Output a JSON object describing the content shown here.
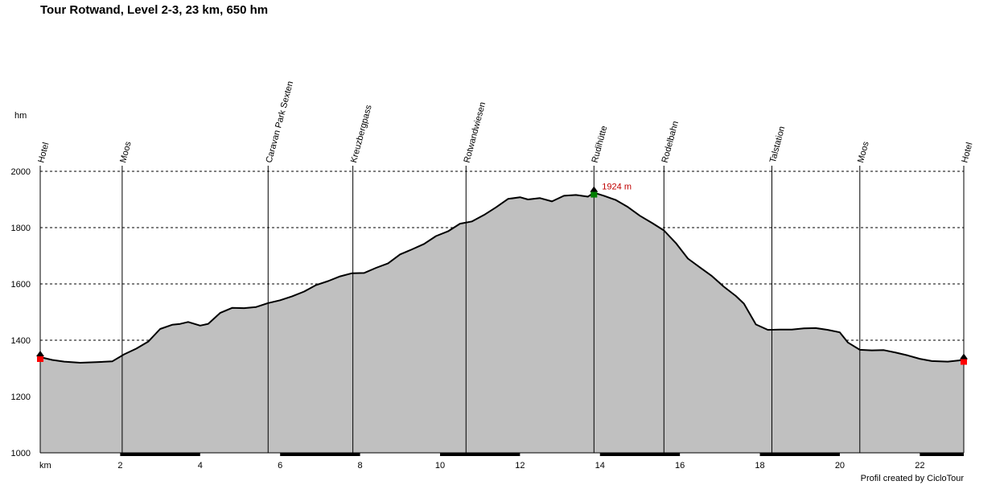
{
  "chart_data": {
    "type": "area",
    "title": "Tour Rotwand, Level 2-3, 23 km, 650 hm",
    "xlabel": "km",
    "ylabel": "hm",
    "xlim": [
      0,
      23.1
    ],
    "ylim": [
      1000,
      2000
    ],
    "x_ticks": [
      2,
      4,
      6,
      8,
      10,
      12,
      14,
      16,
      18,
      20,
      22
    ],
    "y_ticks": [
      1000,
      1200,
      1400,
      1600,
      1800,
      2000
    ],
    "grid": "horizontal dashed",
    "colors": {
      "fill": "#c0c0c0",
      "line": "#000000",
      "summit_marker": "#008000",
      "endpoint_marker": "#ff0000",
      "annotation": "#c00000"
    },
    "profile": [
      [
        0,
        1340
      ],
      [
        0.3,
        1330
      ],
      [
        0.6,
        1324
      ],
      [
        1.0,
        1320
      ],
      [
        1.4,
        1322
      ],
      [
        1.8,
        1325
      ],
      [
        2.1,
        1350
      ],
      [
        2.4,
        1370
      ],
      [
        2.7,
        1395
      ],
      [
        3.0,
        1440
      ],
      [
        3.3,
        1455
      ],
      [
        3.5,
        1458
      ],
      [
        3.7,
        1465
      ],
      [
        4.0,
        1452
      ],
      [
        4.2,
        1458
      ],
      [
        4.5,
        1497
      ],
      [
        4.8,
        1515
      ],
      [
        5.1,
        1514
      ],
      [
        5.4,
        1518
      ],
      [
        5.7,
        1532
      ],
      [
        6.0,
        1542
      ],
      [
        6.3,
        1556
      ],
      [
        6.6,
        1573
      ],
      [
        6.9,
        1596
      ],
      [
        7.2,
        1610
      ],
      [
        7.5,
        1627
      ],
      [
        7.8,
        1638
      ],
      [
        8.1,
        1639
      ],
      [
        8.4,
        1657
      ],
      [
        8.7,
        1673
      ],
      [
        9.0,
        1705
      ],
      [
        9.3,
        1723
      ],
      [
        9.6,
        1742
      ],
      [
        9.9,
        1770
      ],
      [
        10.2,
        1787
      ],
      [
        10.5,
        1814
      ],
      [
        10.8,
        1822
      ],
      [
        11.1,
        1845
      ],
      [
        11.4,
        1872
      ],
      [
        11.7,
        1902
      ],
      [
        12.0,
        1908
      ],
      [
        12.2,
        1900
      ],
      [
        12.5,
        1905
      ],
      [
        12.8,
        1893
      ],
      [
        13.1,
        1913
      ],
      [
        13.4,
        1916
      ],
      [
        13.7,
        1910
      ],
      [
        13.85,
        1924
      ],
      [
        14.1,
        1913
      ],
      [
        14.4,
        1898
      ],
      [
        14.7,
        1873
      ],
      [
        15.0,
        1842
      ],
      [
        15.3,
        1817
      ],
      [
        15.6,
        1790
      ],
      [
        15.9,
        1745
      ],
      [
        16.2,
        1690
      ],
      [
        16.5,
        1659
      ],
      [
        16.8,
        1628
      ],
      [
        17.1,
        1590
      ],
      [
        17.4,
        1557
      ],
      [
        17.6,
        1530
      ],
      [
        17.9,
        1456
      ],
      [
        18.2,
        1437
      ],
      [
        18.5,
        1438
      ],
      [
        18.8,
        1438
      ],
      [
        19.1,
        1442
      ],
      [
        19.4,
        1443
      ],
      [
        19.7,
        1437
      ],
      [
        20.0,
        1428
      ],
      [
        20.2,
        1392
      ],
      [
        20.5,
        1366
      ],
      [
        20.8,
        1364
      ],
      [
        21.1,
        1365
      ],
      [
        21.4,
        1356
      ],
      [
        21.7,
        1346
      ],
      [
        22.0,
        1334
      ],
      [
        22.3,
        1326
      ],
      [
        22.7,
        1324
      ],
      [
        23.1,
        1330
      ]
    ],
    "waypoints": [
      {
        "name": "Hotel",
        "km": 0
      },
      {
        "name": "Moos",
        "km": 2.05
      },
      {
        "name": "Caravan Park Sexten",
        "km": 5.7
      },
      {
        "name": "Kreuzbergpass",
        "km": 7.82
      },
      {
        "name": "Rotwandwiesen",
        "km": 10.65
      },
      {
        "name": "Rudihütte",
        "km": 13.85
      },
      {
        "name": "Rodelbahn",
        "km": 15.6
      },
      {
        "name": "Talstation",
        "km": 18.3
      },
      {
        "name": "Moos",
        "km": 20.5
      },
      {
        "name": "Hotel",
        "km": 23.1
      }
    ],
    "summit": {
      "km": 13.85,
      "elevation": 1924,
      "label": "1924 m"
    }
  },
  "footer": {
    "credit": "Profil created by CicloTour"
  }
}
